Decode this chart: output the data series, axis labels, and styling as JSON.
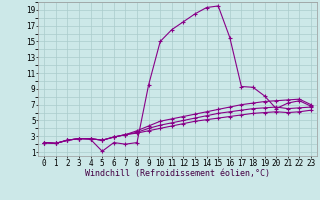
{
  "xlabel": "Windchill (Refroidissement éolien,°C)",
  "bg_color": "#cce8e8",
  "line_color": "#880088",
  "grid_color": "#aacccc",
  "xlim": [
    -0.5,
    23.5
  ],
  "ylim": [
    0.5,
    20.0
  ],
  "xticks": [
    0,
    1,
    2,
    3,
    4,
    5,
    6,
    7,
    8,
    9,
    10,
    11,
    12,
    13,
    14,
    15,
    16,
    17,
    18,
    19,
    20,
    21,
    22,
    23
  ],
  "yticks": [
    1,
    3,
    5,
    7,
    9,
    11,
    13,
    15,
    17,
    19
  ],
  "line1": [
    2.2,
    2.1,
    2.5,
    2.7,
    2.6,
    1.1,
    2.2,
    2.0,
    2.2,
    9.5,
    15.0,
    16.5,
    17.5,
    18.5,
    19.3,
    19.5,
    15.5,
    9.3,
    9.2,
    8.1,
    6.5,
    7.2,
    7.5,
    6.8
  ],
  "line2": [
    2.2,
    2.1,
    2.5,
    2.7,
    2.7,
    2.5,
    2.9,
    3.2,
    3.7,
    4.3,
    4.9,
    5.2,
    5.5,
    5.8,
    6.1,
    6.4,
    6.7,
    7.0,
    7.2,
    7.4,
    7.5,
    7.6,
    7.7,
    7.0
  ],
  "line3": [
    2.2,
    2.1,
    2.5,
    2.7,
    2.7,
    2.5,
    2.9,
    3.2,
    3.5,
    4.0,
    4.4,
    4.7,
    5.0,
    5.3,
    5.6,
    5.9,
    6.1,
    6.3,
    6.5,
    6.6,
    6.7,
    6.5,
    6.6,
    6.7
  ],
  "line4": [
    2.2,
    2.1,
    2.5,
    2.7,
    2.7,
    2.5,
    2.9,
    3.2,
    3.4,
    3.7,
    4.0,
    4.3,
    4.6,
    4.9,
    5.1,
    5.3,
    5.5,
    5.7,
    5.9,
    6.0,
    6.1,
    6.0,
    6.1,
    6.3
  ],
  "tick_fontsize": 5.5,
  "xlabel_fontsize": 6.0,
  "marker_size": 2.5,
  "line_width": 0.8
}
